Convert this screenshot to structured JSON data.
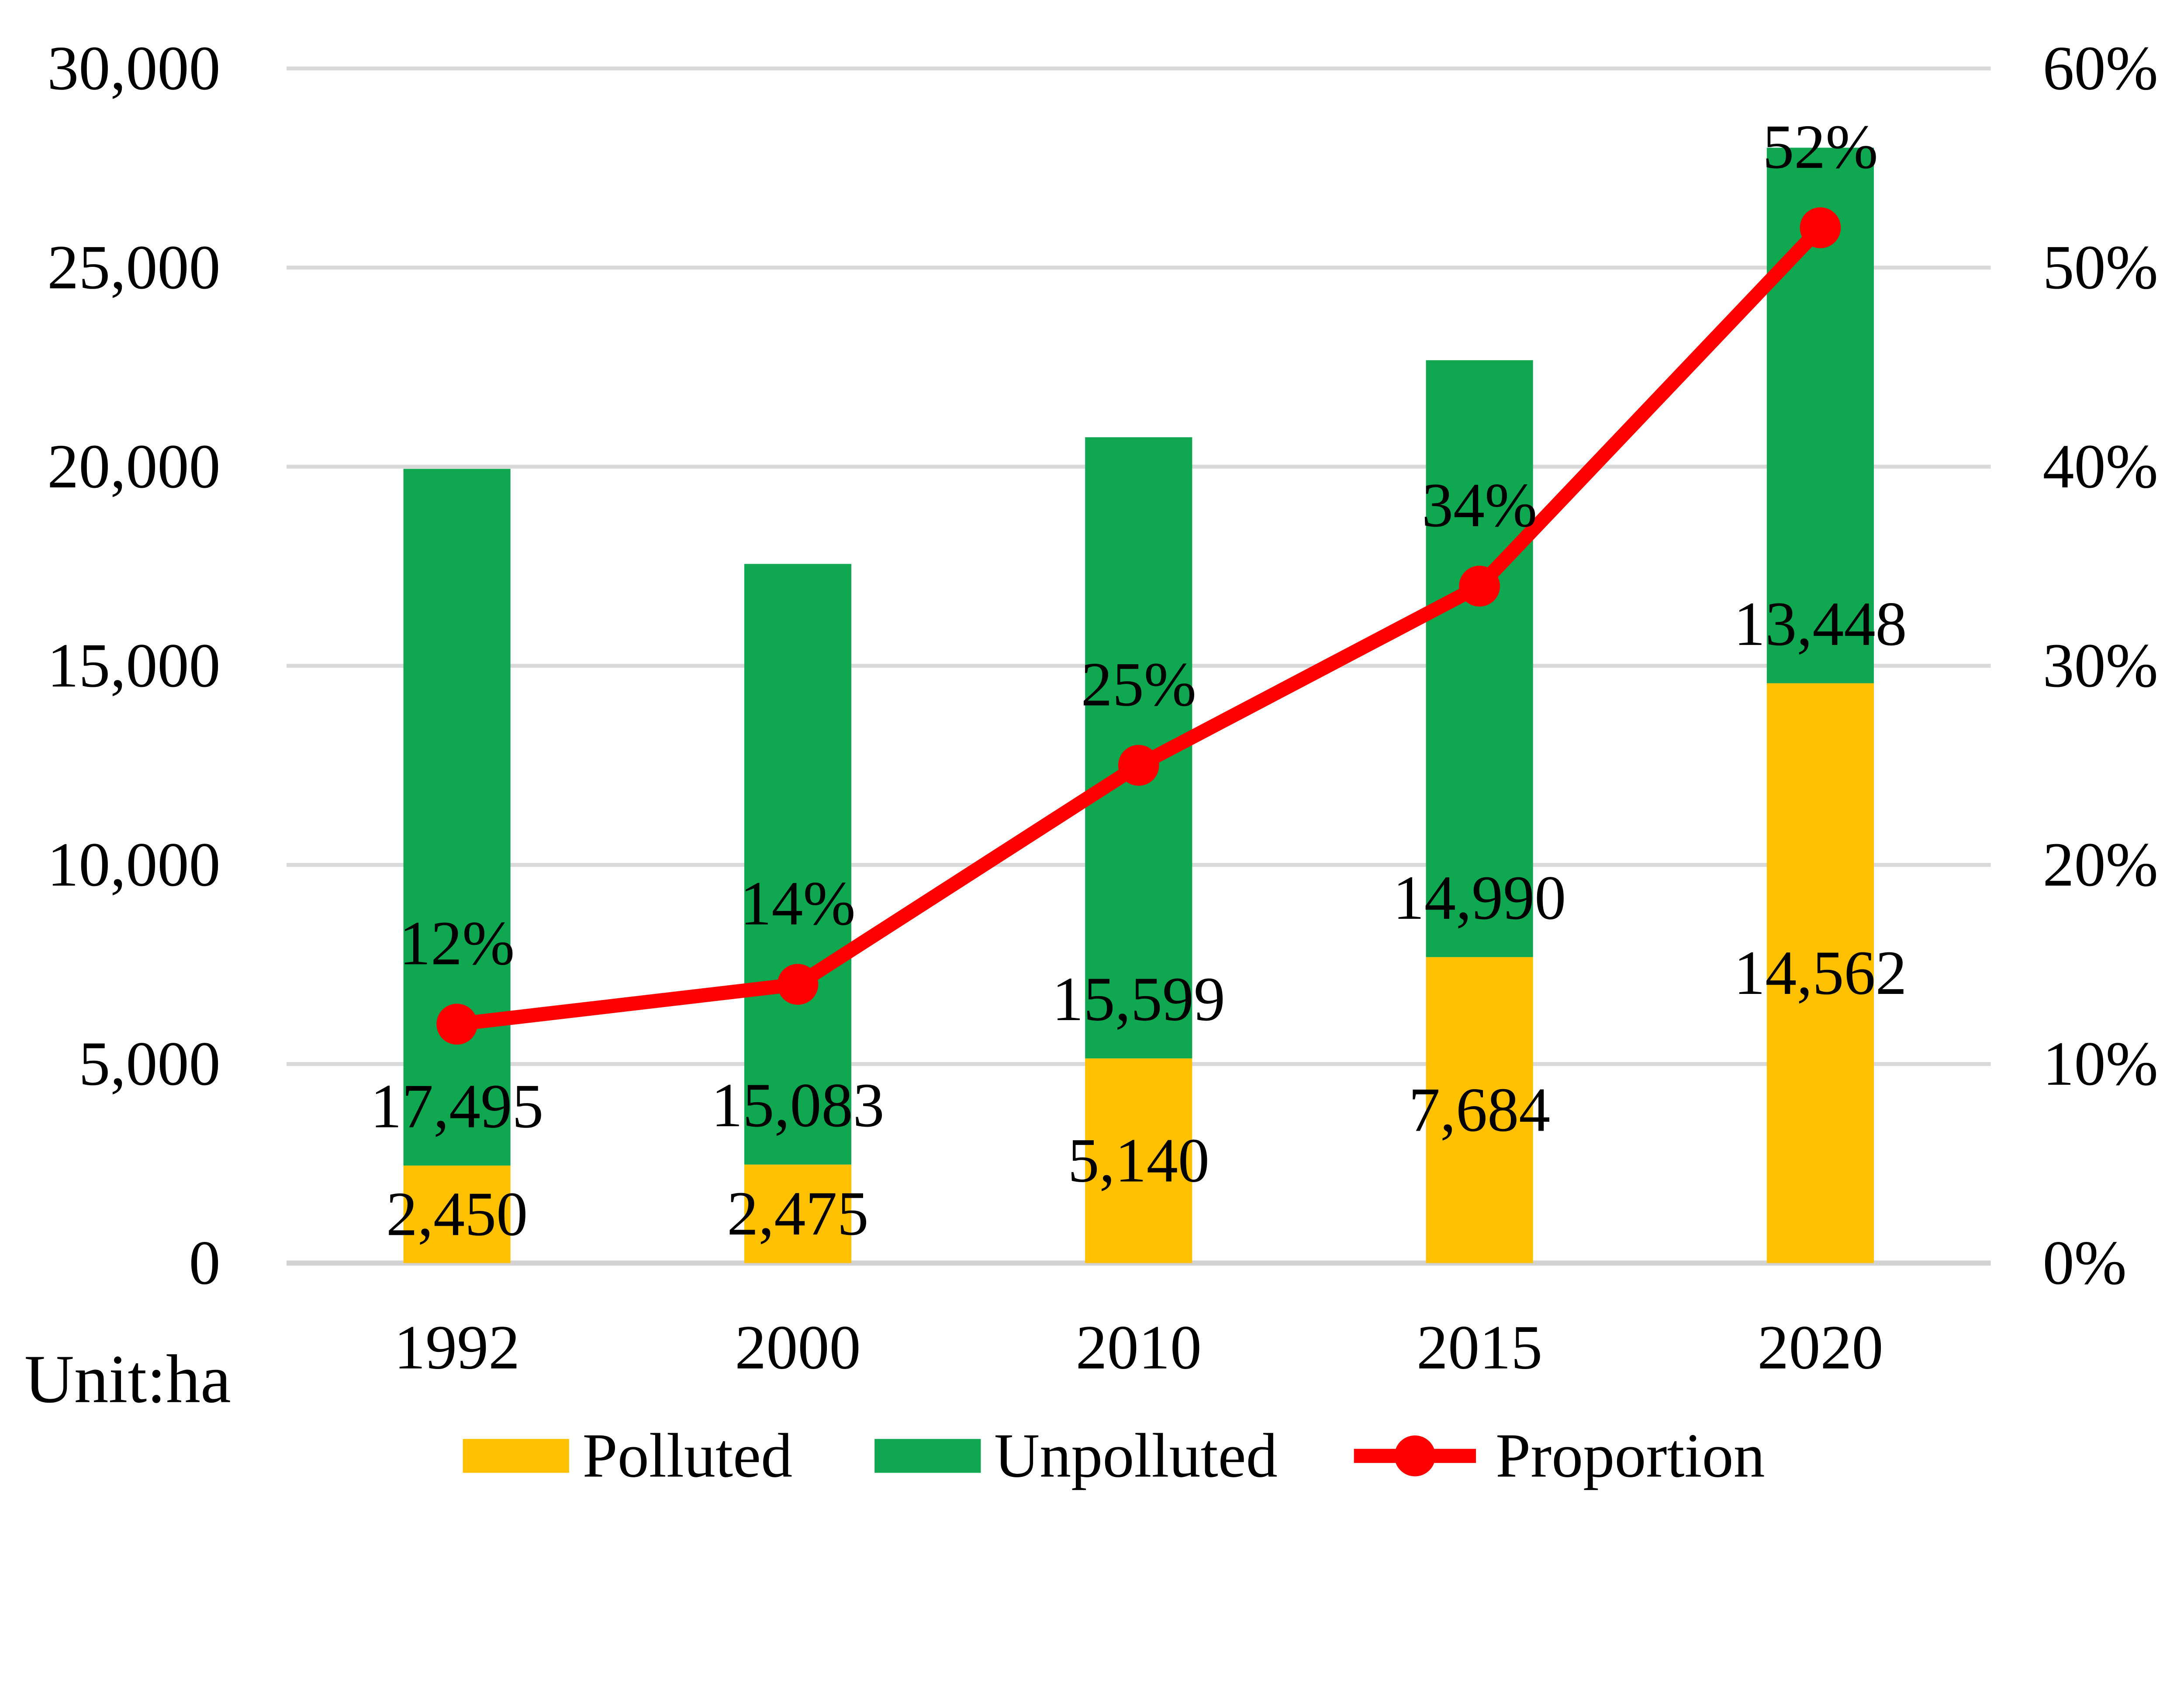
{
  "chart_data": {
    "type": "combo-stacked-bar-line",
    "unit_label": "Unit:ha",
    "categories": [
      "1992",
      "2000",
      "2010",
      "2015",
      "2020"
    ],
    "bar_series": [
      {
        "name": "Polluted",
        "color": "#FFC000",
        "values": [
          2450,
          2475,
          5140,
          7684,
          14562
        ],
        "labels": [
          "2,450",
          "2,475",
          "5,140",
          "7,684",
          "14,562"
        ]
      },
      {
        "name": "Unpolluted",
        "color": "#0FA750",
        "values": [
          17495,
          15083,
          15599,
          14990,
          13448
        ],
        "labels": [
          "17,495",
          "15,083",
          "15,599",
          "14,990",
          "13,448"
        ]
      }
    ],
    "line_series": {
      "name": "Proportion",
      "color": "#FF0000",
      "values_pct": [
        12,
        14,
        25,
        34,
        52
      ],
      "labels": [
        "12%",
        "14%",
        "25%",
        "34%",
        "52%"
      ]
    },
    "left_axis": {
      "min": 0,
      "max": 30000,
      "step": 5000,
      "ticks": [
        "0",
        "5,000",
        "10,000",
        "15,000",
        "20,000",
        "25,000",
        "30,000"
      ]
    },
    "right_axis": {
      "min": 0,
      "max": 60,
      "step": 10,
      "ticks": [
        "0%",
        "10%",
        "20%",
        "30%",
        "40%",
        "50%",
        "60%"
      ]
    },
    "legend": {
      "position": "bottom",
      "items": [
        "Polluted",
        "Unpolluted",
        "Proportion"
      ]
    },
    "style": {
      "gridline_color": "#D9D9D9",
      "baseline_color": "#D2D2D2",
      "text_color": "#000000",
      "background": "#FFFFFF"
    },
    "grid": true
  }
}
